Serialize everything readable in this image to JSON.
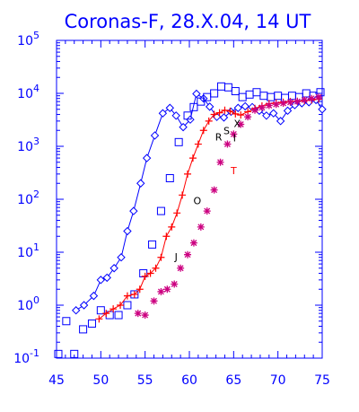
{
  "chart_data": {
    "type": "scatter",
    "title": "Coronas-F, 28.X.04, 14 UT",
    "xlim": [
      45,
      75
    ],
    "ylim": [
      0.1,
      100000
    ],
    "y_scale": "log",
    "x_ticks": [
      45,
      50,
      55,
      60,
      65,
      70,
      75
    ],
    "x_tick_labels": [
      "45",
      "50",
      "55",
      "60",
      "65",
      "70",
      "75"
    ],
    "y_ticks": [
      0.1,
      1,
      10,
      100,
      1000,
      10000,
      100000
    ],
    "y_tick_bases": [
      "10",
      "10",
      "10",
      "10",
      "10",
      "10",
      "10"
    ],
    "y_tick_exps": [
      "-1",
      "0",
      "1",
      "2",
      "3",
      "4",
      "5"
    ],
    "colors": {
      "axis": "#0000ff",
      "diamond": "#0000ff",
      "square": "#0000ff",
      "plus": "#ff0000",
      "star": "#cc0080",
      "label_black": "#000000",
      "label_red": "#ff0000"
    },
    "series": [
      {
        "marker": "diamond",
        "line": true,
        "x": [
          47.2,
          48.1,
          49.2,
          50.0,
          50.7,
          51.5,
          52.3,
          53.0,
          53.7,
          54.5,
          55.2,
          56.1,
          57.0,
          57.8,
          58.5,
          59.3,
          60.1,
          60.8,
          61.6,
          62.3,
          63.1,
          63.9,
          64.7,
          65.5,
          66.3,
          67.1,
          67.9,
          68.7,
          69.5,
          70.3,
          71.1,
          71.9,
          72.7,
          73.5,
          74.3,
          75.0
        ],
        "y": [
          0.8,
          1.0,
          1.5,
          3.0,
          3.3,
          5.0,
          8.0,
          25,
          60,
          200,
          600,
          1600,
          4200,
          5300,
          3800,
          2300,
          3200,
          9800,
          8000,
          5600,
          3600,
          3500,
          4500,
          5300,
          5700,
          5500,
          4700,
          3800,
          4200,
          3000,
          4700,
          6000,
          6500,
          6800,
          7500,
          5000
        ]
      },
      {
        "marker": "square",
        "line": false,
        "x": [
          45.2,
          46.1,
          47.0,
          48.0,
          49.0,
          50.0,
          51.0,
          52.0,
          53.0,
          53.8,
          54.8,
          55.8,
          56.8,
          57.8,
          58.8,
          59.8,
          60.5,
          61.3,
          62.0,
          62.8,
          63.6,
          64.4,
          65.2,
          66.0,
          66.8,
          67.6,
          68.4,
          69.2,
          70.0,
          70.8,
          71.6,
          72.4,
          73.2,
          74.0,
          74.8
        ],
        "y": [
          0.12,
          0.5,
          0.12,
          0.35,
          0.45,
          0.8,
          0.65,
          0.65,
          1.0,
          1.6,
          4.0,
          14,
          60,
          250,
          1200,
          3800,
          5500,
          7000,
          8500,
          10000,
          13500,
          13000,
          11000,
          8500,
          9500,
          10500,
          9000,
          8500,
          9000,
          8200,
          9000,
          8500,
          10000,
          9000,
          10500
        ]
      },
      {
        "marker": "plus",
        "line": true,
        "x": [
          49.8,
          50.6,
          51.4,
          52.2,
          53.0,
          53.8,
          54.4,
          55.0,
          55.6,
          56.2,
          56.8,
          57.4,
          58.0,
          58.6,
          59.2,
          59.8,
          60.4,
          61.0,
          61.6,
          62.2,
          62.8,
          63.4,
          64.0,
          64.6,
          65.2,
          65.8,
          66.6,
          67.4,
          68.2,
          69.0,
          69.8,
          70.6,
          71.4,
          72.2,
          73.0,
          73.8,
          74.6
        ],
        "y": [
          0.55,
          0.7,
          0.85,
          1.0,
          1.5,
          1.6,
          2.0,
          3.5,
          4.0,
          5.0,
          8.0,
          20,
          30,
          55,
          120,
          300,
          600,
          1100,
          2000,
          3000,
          4000,
          4300,
          4800,
          4600,
          4100,
          3900,
          4500,
          5200,
          5800,
          6400,
          6600,
          6800,
          7000,
          7100,
          7300,
          7500,
          7800
        ]
      },
      {
        "marker": "star",
        "line": false,
        "x": [
          54.2,
          55.0,
          56.0,
          56.8,
          57.5,
          58.3,
          59.0,
          59.8,
          60.5,
          61.3,
          62.0,
          62.8,
          63.5,
          64.3,
          65.0,
          65.8,
          66.6,
          67.4,
          68.2,
          69.0,
          69.8,
          70.6,
          71.4,
          72.2,
          73.0,
          73.8,
          74.6
        ],
        "y": [
          0.7,
          0.65,
          1.2,
          1.8,
          2.0,
          2.5,
          5.0,
          9.0,
          15,
          30,
          60,
          150,
          500,
          1100,
          1700,
          2600,
          3600,
          4800,
          5400,
          5900,
          6200,
          6500,
          6800,
          7000,
          7500,
          8000,
          8500
        ]
      }
    ],
    "annotations": [
      {
        "text": "R",
        "x": 63.3,
        "y": 1300,
        "color": "#000000"
      },
      {
        "text": "S",
        "x": 64.2,
        "y": 1700,
        "color": "#000000"
      },
      {
        "text": "I",
        "x": 65.1,
        "y": 1250,
        "color": "#000000"
      },
      {
        "text": "X",
        "x": 65.4,
        "y": 2300,
        "color": "#000000"
      },
      {
        "text": "T",
        "x": 65.0,
        "y": 300,
        "color": "#ff0000"
      },
      {
        "text": "O",
        "x": 60.9,
        "y": 80,
        "color": "#000000"
      },
      {
        "text": "J",
        "x": 58.5,
        "y": 7,
        "color": "#000000"
      }
    ]
  }
}
